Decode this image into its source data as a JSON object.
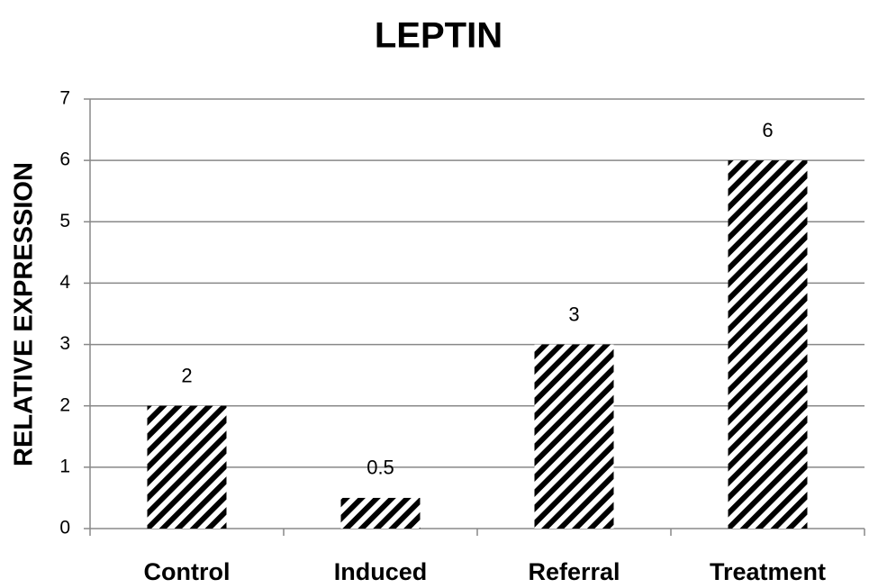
{
  "chart_data": {
    "type": "bar",
    "title": "LEPTIN",
    "ylabel": "RELATIVE EXPRESSION",
    "categories": [
      "Control",
      "Induced",
      "Referral",
      "Treatment"
    ],
    "values": [
      2,
      0.5,
      3,
      6
    ],
    "color": "#000000",
    "hatch": true,
    "ylim": [
      0,
      7
    ],
    "yticks": [
      0,
      1,
      2,
      3,
      4,
      5,
      6,
      7
    ],
    "grid": true
  }
}
